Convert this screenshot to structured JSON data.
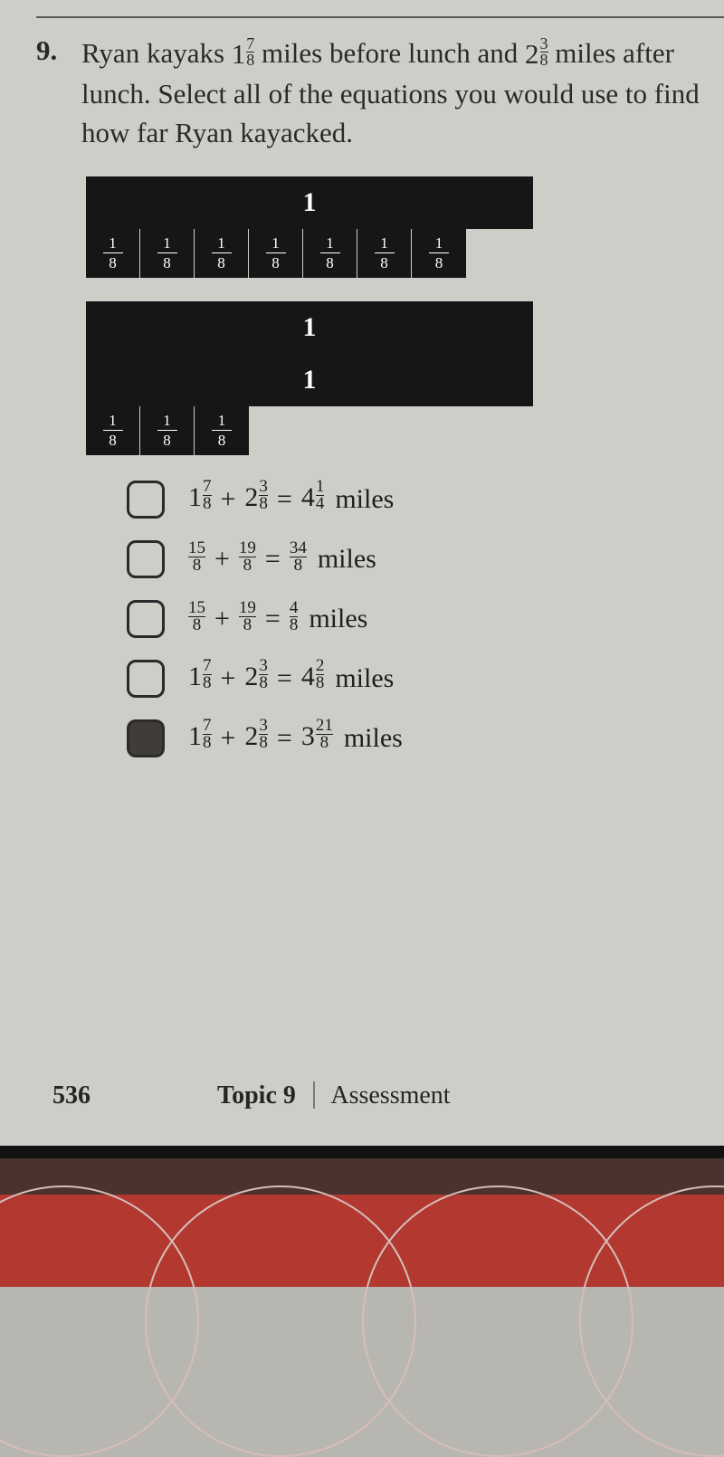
{
  "question": {
    "number": "9.",
    "text_before_frac1": "Ryan kayaks ",
    "frac1_whole": "1",
    "frac1_num": "7",
    "frac1_den": "8",
    "text_mid1": " miles before lunch and ",
    "frac2_whole": "2",
    "frac2_num": "3",
    "frac2_den": "8",
    "text_after": " miles after lunch. Select all of the equations you would use to find how far Ryan kayacked."
  },
  "diagram1": {
    "whole_label": "1",
    "eighth_num": "1",
    "eighth_den": "8",
    "eighth_count": 7
  },
  "diagram2": {
    "whole_labels": [
      "1",
      "1"
    ],
    "eighth_num": "1",
    "eighth_den": "8",
    "eighth_count": 3
  },
  "options": [
    {
      "checked": false,
      "a_whole": "1",
      "a_num": "7",
      "a_den": "8",
      "b_whole": "2",
      "b_num": "3",
      "b_den": "8",
      "r_whole": "4",
      "r_num": "1",
      "r_den": "4",
      "unit": "miles",
      "a_type": "mixed",
      "b_type": "mixed",
      "r_type": "mixed"
    },
    {
      "checked": false,
      "a_num": "15",
      "a_den": "8",
      "b_num": "19",
      "b_den": "8",
      "r_num": "34",
      "r_den": "8",
      "unit": "miles",
      "a_type": "frac",
      "b_type": "frac",
      "r_type": "frac"
    },
    {
      "checked": false,
      "a_num": "15",
      "a_den": "8",
      "b_num": "19",
      "b_den": "8",
      "r_num": "4",
      "r_den": "8",
      "unit": "miles",
      "a_type": "frac",
      "b_type": "frac",
      "r_type": "frac"
    },
    {
      "checked": false,
      "a_whole": "1",
      "a_num": "7",
      "a_den": "8",
      "b_whole": "2",
      "b_num": "3",
      "b_den": "8",
      "r_whole": "4",
      "r_num": "2",
      "r_den": "8",
      "unit": "miles",
      "a_type": "mixed",
      "b_type": "mixed",
      "r_type": "mixed"
    },
    {
      "checked": true,
      "a_whole": "1",
      "a_num": "7",
      "a_den": "8",
      "b_whole": "2",
      "b_num": "3",
      "b_den": "8",
      "r_whole": "3",
      "r_num": "21",
      "r_den": "8",
      "unit": "miles",
      "a_type": "mixed",
      "b_type": "mixed",
      "r_type": "mixed"
    }
  ],
  "footer": {
    "page": "536",
    "topic_label": "Topic 9",
    "section": "Assessment"
  },
  "colors": {
    "page_bg": "#cfcdc8",
    "bar_bg": "#161616",
    "text": "#2a2a2a",
    "bottom_red": "#b23830"
  }
}
